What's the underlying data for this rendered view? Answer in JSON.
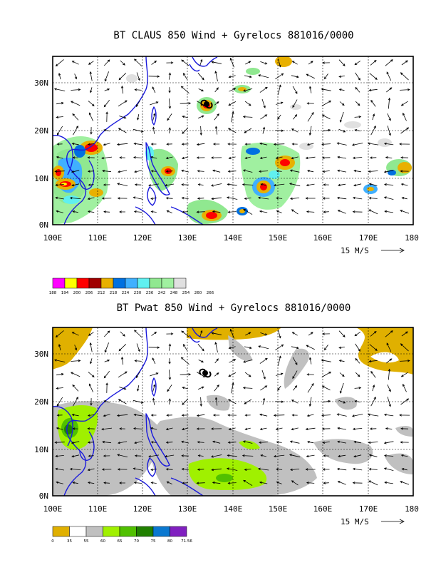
{
  "colors": {
    "coast": "#1a1adc",
    "claus_scale": [
      "#ff00ff",
      "#ffff00",
      "#ff0000",
      "#a00000",
      "#e8b000",
      "#0070e0",
      "#40b0ff",
      "#60f0f0",
      "#90e890",
      "#a0f0a0",
      "#e0e0e0"
    ],
    "pwat_scale": [
      "#e0b000",
      "#ffffff",
      "#c0c0c0",
      "#a0f000",
      "#50c000",
      "#208000",
      "#0a78d0",
      "#8020c0"
    ]
  },
  "panels": [
    {
      "id": "claus",
      "title": "BT CLAUS 850 Wind + Gyrelocs 881016/0000",
      "lat_ticks": [
        "30N",
        "20N",
        "10N",
        "0N"
      ],
      "lon_ticks": [
        "100E",
        "110E",
        "120E",
        "130E",
        "140E",
        "150E",
        "160E",
        "170E",
        "180"
      ],
      "vector_ref": "15 M/S",
      "colorbar_labels": [
        "188",
        "194",
        "200",
        "206",
        "212",
        "218",
        "224",
        "230",
        "236",
        "242",
        "248",
        "254",
        "260",
        "266"
      ]
    },
    {
      "id": "pwat",
      "title": "BT Pwat 850 Wind + Gyrelocs 881016/0000",
      "lat_ticks": [
        "30N",
        "20N",
        "10N",
        "0N"
      ],
      "lon_ticks": [
        "100E",
        "110E",
        "120E",
        "130E",
        "140E",
        "150E",
        "160E",
        "170E",
        "180"
      ],
      "vector_ref": "15 M/S",
      "colorbar_labels": [
        "0",
        "35",
        "55",
        "60",
        "65",
        "70",
        "75",
        "80",
        "71.56"
      ]
    }
  ]
}
